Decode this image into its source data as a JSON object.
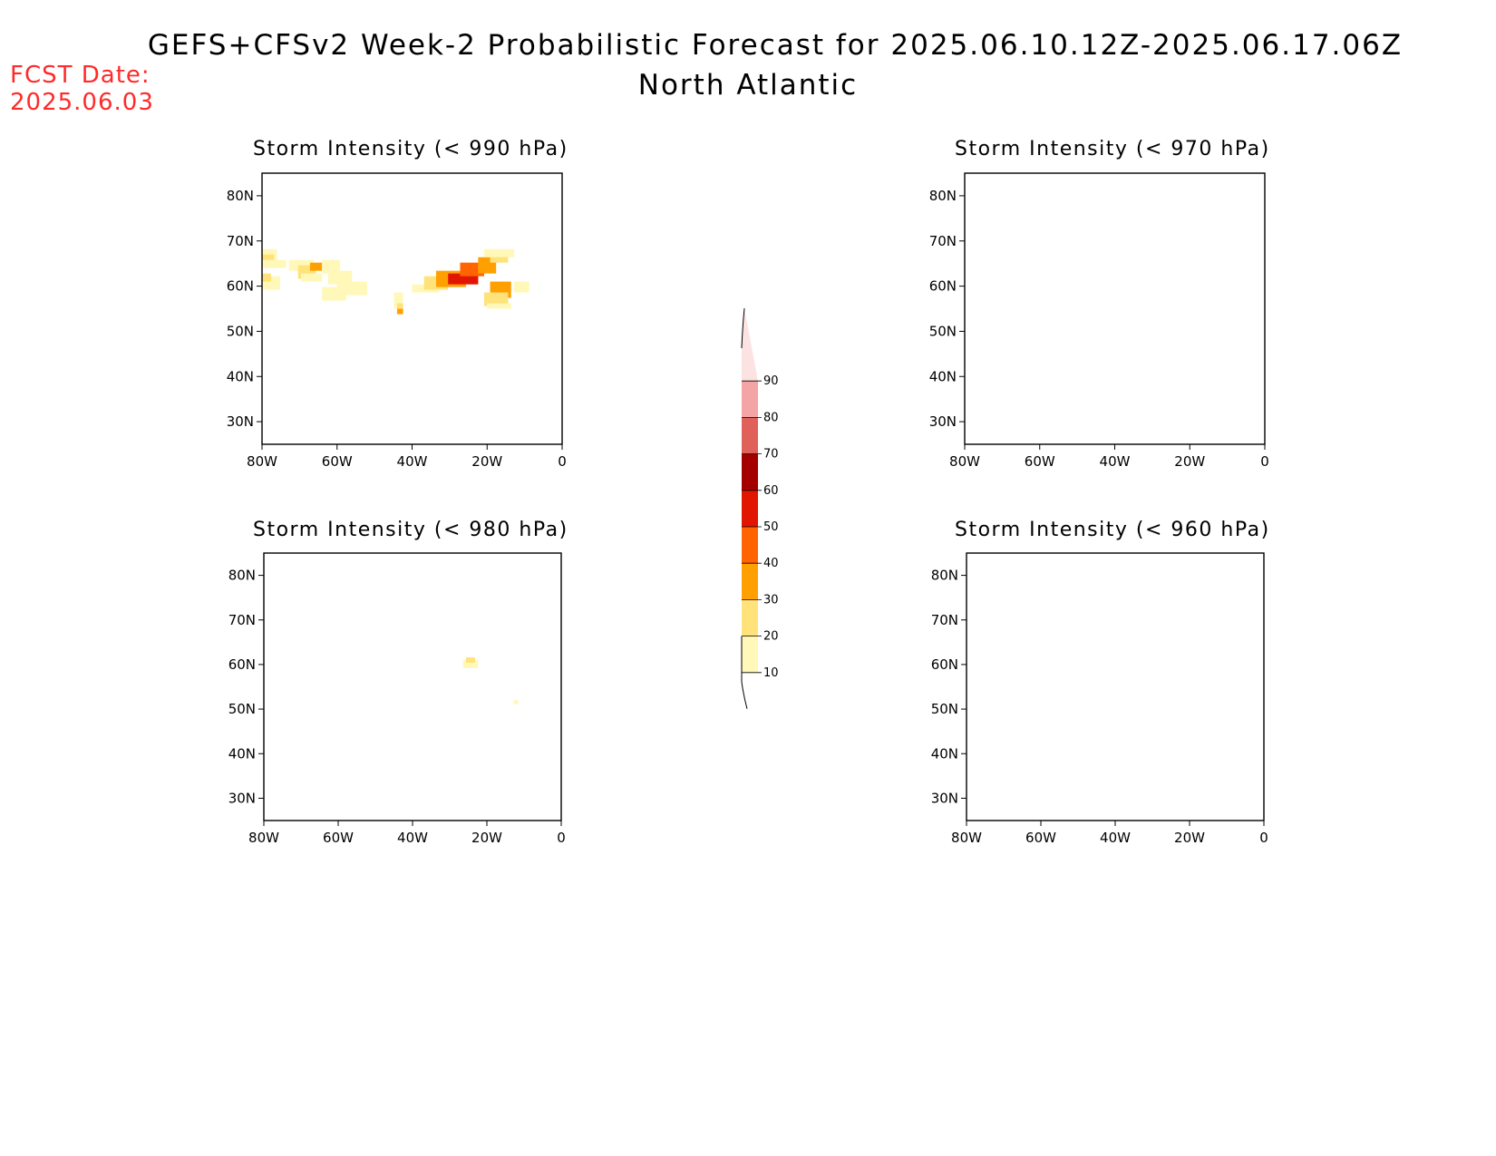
{
  "header": {
    "title": "GEFS+CFSv2 Week-2 Probabilistic Forecast for 2025.06.10.12Z-2025.06.17.06Z",
    "region": "North Atlantic",
    "fcst_label": "FCST Date:",
    "fcst_date": "2025.06.03",
    "fcst_color": "#ff2a2a"
  },
  "panels": [
    {
      "id": "p990",
      "title": "Storm Intensity (< 990 hPa)",
      "position": "top-left",
      "has_shading": true
    },
    {
      "id": "p970",
      "title": "Storm Intensity (< 970 hPa)",
      "position": "top-right",
      "has_shading": false
    },
    {
      "id": "p980",
      "title": "Storm Intensity (< 980 hPa)",
      "position": "bottom-left",
      "has_shading": true
    },
    {
      "id": "p960",
      "title": "Storm Intensity (< 960 hPa)",
      "position": "bottom-right",
      "has_shading": false
    }
  ],
  "axes": {
    "lon_ticks": [
      "80W",
      "60W",
      "40W",
      "20W",
      "0"
    ],
    "lat_ticks": [
      "80N",
      "70N",
      "60N",
      "50N",
      "40N",
      "30N"
    ]
  },
  "colorbar": {
    "levels": [
      "10",
      "20",
      "30",
      "40",
      "50",
      "60",
      "70",
      "80",
      "90"
    ],
    "colors": [
      "#fff8b8",
      "#ffe27a",
      "#ffa000",
      "#ff6400",
      "#e11600",
      "#a50000",
      "#e0605a",
      "#f4a4a4",
      "#fde2e2"
    ]
  }
}
